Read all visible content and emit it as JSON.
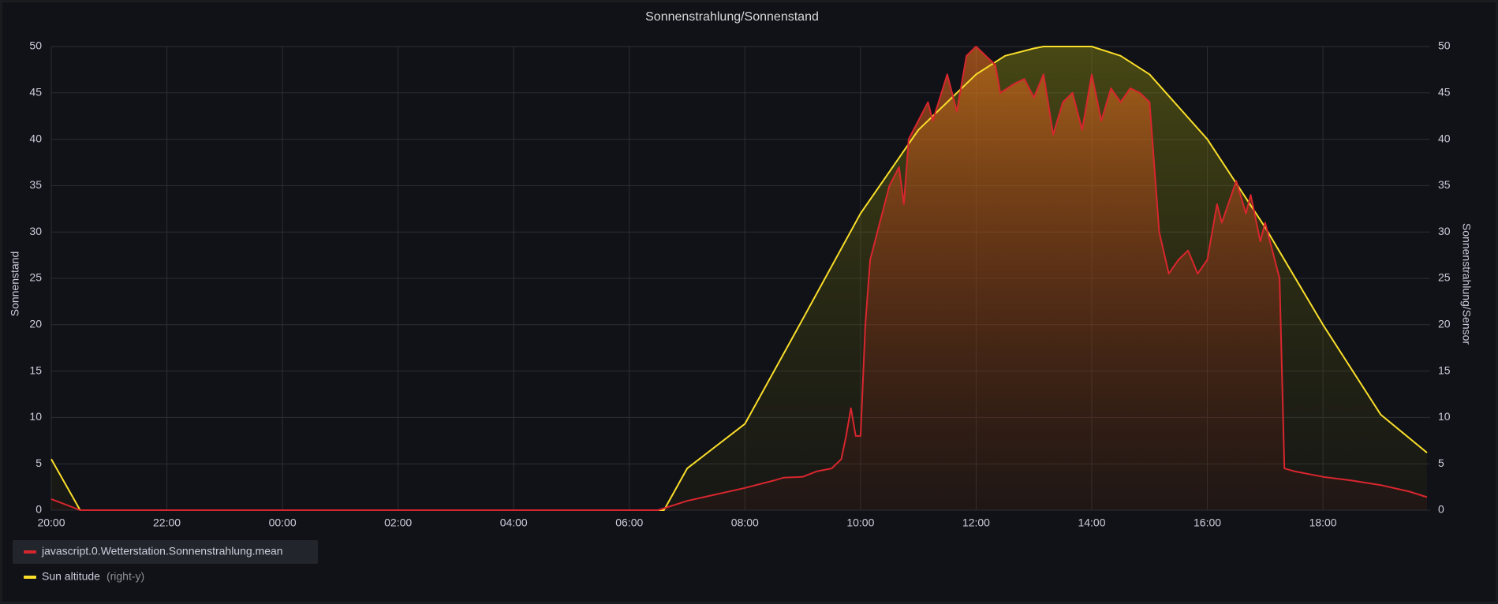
{
  "chart_data": {
    "type": "line",
    "title": "Sonnenstrahlung/Sonnenstand",
    "ylabel": "Sonnenstand",
    "y2label": "Sonnenstrahlung/Sensor",
    "xlim": [
      "20:00",
      "19:48"
    ],
    "xticks": [
      "20:00",
      "22:00",
      "00:00",
      "02:00",
      "04:00",
      "06:00",
      "08:00",
      "10:00",
      "12:00",
      "14:00",
      "16:00",
      "18:00"
    ],
    "ylim": [
      0,
      50
    ],
    "yticks": [
      0,
      5,
      10,
      15,
      20,
      25,
      30,
      35,
      40,
      45,
      50
    ],
    "y2lim": [
      0,
      50
    ],
    "y2ticks": [
      0,
      5,
      10,
      15,
      20,
      25,
      30,
      35,
      40,
      45,
      50
    ],
    "grid": true,
    "legend": "bottom-left",
    "series": [
      {
        "name": "javascript.0.Wetterstation.Sonnenstrahlung.mean",
        "color": "#d8262e",
        "x": [
          "20:00",
          "20:30",
          "00:00",
          "06:30",
          "07:00",
          "07:30",
          "08:00",
          "08:30",
          "08:40",
          "09:00",
          "09:15",
          "09:30",
          "09:40",
          "09:45",
          "09:50",
          "09:55",
          "10:00",
          "10:05",
          "10:10",
          "10:20",
          "10:30",
          "10:40",
          "10:45",
          "10:50",
          "11:00",
          "11:10",
          "11:15",
          "11:30",
          "11:40",
          "11:50",
          "12:00",
          "12:10",
          "12:20",
          "12:25",
          "12:40",
          "12:50",
          "13:00",
          "13:10",
          "13:20",
          "13:30",
          "13:40",
          "13:50",
          "14:00",
          "14:10",
          "14:20",
          "14:30",
          "14:40",
          "14:50",
          "15:00",
          "15:10",
          "15:20",
          "15:30",
          "15:40",
          "15:50",
          "16:00",
          "16:10",
          "16:15",
          "16:30",
          "16:40",
          "16:45",
          "16:55",
          "17:00",
          "17:05",
          "17:15",
          "17:20",
          "17:30",
          "18:00",
          "18:30",
          "19:00",
          "19:30",
          "19:48"
        ],
        "values": [
          1.2,
          0,
          0,
          0,
          1,
          1.7,
          2.4,
          3.2,
          3.5,
          3.6,
          4.2,
          4.5,
          5.5,
          8,
          11,
          8,
          8,
          20,
          27,
          31,
          35,
          37,
          33,
          40,
          42,
          44,
          42,
          47,
          43,
          49,
          50,
          49,
          48,
          45,
          46,
          46.5,
          44.5,
          47,
          40.5,
          44,
          45,
          41,
          47,
          42,
          45.5,
          44,
          45.5,
          45,
          44,
          30,
          25.5,
          27,
          28,
          25.5,
          27,
          33,
          31,
          35.5,
          32,
          34,
          29,
          31,
          29,
          25,
          4.5,
          4.2,
          3.6,
          3.2,
          2.7,
          2.0,
          1.4
        ]
      },
      {
        "name": "Sun altitude",
        "note": "(right-y)",
        "color": "#fade2a",
        "axis": "y2",
        "x": [
          "20:00",
          "20:30",
          "06:36",
          "07:00",
          "08:00",
          "09:00",
          "10:00",
          "11:00",
          "12:00",
          "12:30",
          "13:00",
          "13:10",
          "14:00",
          "14:30",
          "15:00",
          "16:00",
          "17:00",
          "18:00",
          "19:00",
          "19:48"
        ],
        "values": [
          5.5,
          0,
          0,
          4.5,
          9.3,
          20.6,
          32,
          41,
          47,
          49,
          49.8,
          50,
          50,
          49,
          47,
          40,
          30.5,
          20,
          10.3,
          6.2
        ]
      }
    ]
  }
}
